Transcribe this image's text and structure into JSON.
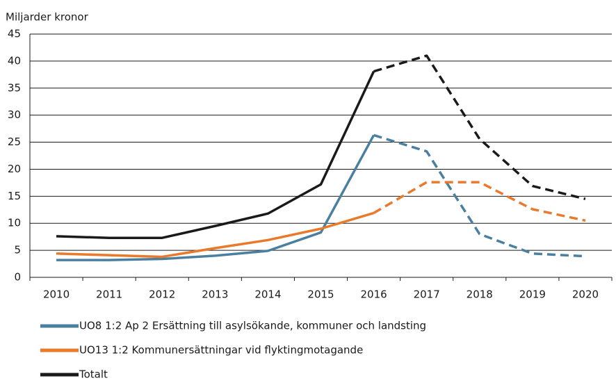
{
  "chart_data": {
    "type": "line",
    "y_label": "Miljarder kronor",
    "categories": [
      "2010",
      "2011",
      "2012",
      "2013",
      "2014",
      "2015",
      "2016",
      "2017",
      "2018",
      "2019",
      "2020"
    ],
    "dashed_from": "2016",
    "series": [
      {
        "name": "UO8 1:2 Ap 2 Ersättning till asylsökande, kommuner och landsting",
        "color": "#4b7fa0",
        "values": [
          3.2,
          3.2,
          3.4,
          4.0,
          4.9,
          8.3,
          26.3,
          23.3,
          8.0,
          4.4,
          3.9
        ]
      },
      {
        "name": "UO13 1:2 Kommunersättningar vid flyktingmotagande",
        "color": "#e97a2b",
        "values": [
          4.4,
          4.1,
          3.8,
          5.4,
          6.9,
          9.0,
          11.9,
          17.6,
          17.6,
          12.6,
          10.5
        ]
      },
      {
        "name": "Totalt",
        "color": "#1a1a1a",
        "values": [
          7.6,
          7.3,
          7.3,
          9.5,
          11.8,
          17.2,
          38.1,
          41.0,
          25.6,
          16.9,
          14.5
        ]
      }
    ],
    "ylim": [
      0,
      45
    ],
    "yticks": [
      0,
      5,
      10,
      15,
      20,
      25,
      30,
      35,
      40,
      45
    ],
    "grid": true
  }
}
